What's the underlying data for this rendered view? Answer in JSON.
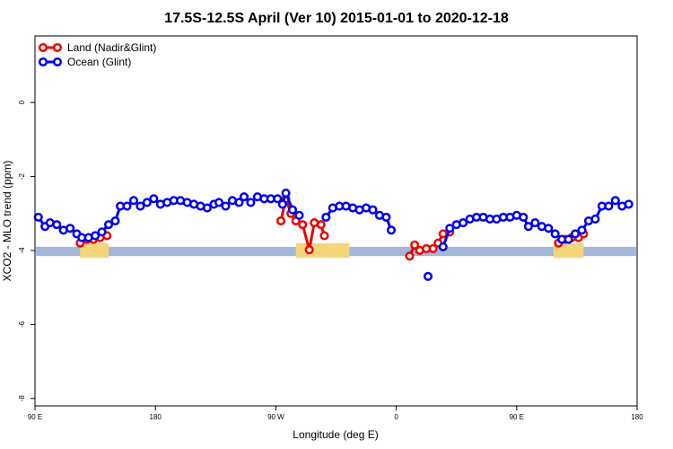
{
  "chart_data": {
    "type": "line",
    "title": "17.5S-12.5S April (Ver 10)   2015-01-01 to 2020-12-18",
    "xlabel": "Longitude (deg E)",
    "ylabel": "XCO2 - MLO trend (ppm)",
    "xlim": [
      90,
      450
    ],
    "ylim": [
      -8.2,
      1.8
    ],
    "x_ticks": [
      {
        "value": 90,
        "label": "90 E"
      },
      {
        "value": 162,
        "label": "180"
      },
      {
        "value": 234,
        "label": "90 W"
      },
      {
        "value": 306,
        "label": "0"
      },
      {
        "value": 378,
        "label": "90 E"
      },
      {
        "value": 450,
        "label": "180"
      }
    ],
    "y_ticks": [
      {
        "value": 0,
        "label": "0"
      },
      {
        "value": -2,
        "label": "-2"
      },
      {
        "value": -4,
        "label": "-4"
      },
      {
        "value": -6,
        "label": "-6"
      },
      {
        "value": -8,
        "label": "-8"
      }
    ],
    "legend_position": "top-left",
    "ocean_band": {
      "y_top": -3.9,
      "y_bottom": -4.15,
      "color": "#a3b7d9"
    },
    "land_color": "#f5d57a",
    "land_segments": [
      [
        117,
        134
      ],
      [
        246,
        278
      ],
      [
        400,
        418
      ]
    ],
    "series": [
      {
        "name": "Land (Nadir&Glint)",
        "color": "#ee0000",
        "segments": [
          [
            [
              117,
              -3.8
            ],
            [
              121,
              -3.7
            ],
            [
              125,
              -3.7
            ],
            [
              129,
              -3.65
            ],
            [
              133,
              -3.6
            ]
          ],
          [
            [
              237,
              -3.2
            ],
            [
              240,
              -2.6
            ],
            [
              243,
              -3.0
            ],
            [
              246,
              -3.2
            ],
            [
              250,
              -3.3
            ],
            [
              254,
              -3.98
            ],
            [
              257,
              -3.25
            ],
            [
              261,
              -3.3
            ],
            [
              263,
              -3.6
            ]
          ],
          [
            [
              314,
              -4.15
            ],
            [
              317,
              -3.85
            ],
            [
              320,
              -4.0
            ],
            [
              324,
              -3.95
            ],
            [
              328,
              -3.95
            ],
            [
              331,
              -3.8
            ],
            [
              334,
              -3.55
            ],
            [
              338,
              -3.5
            ]
          ],
          [
            [
              403,
              -3.8
            ],
            [
              407,
              -3.7
            ],
            [
              411,
              -3.65
            ],
            [
              415,
              -3.65
            ],
            [
              418,
              -3.55
            ]
          ]
        ]
      },
      {
        "name": "Ocean (Glint)",
        "color": "#0000ee",
        "segments": [
          [
            [
              92,
              -3.1
            ],
            [
              96,
              -3.35
            ],
            [
              99,
              -3.25
            ],
            [
              103,
              -3.3
            ],
            [
              107,
              -3.45
            ],
            [
              111,
              -3.4
            ],
            [
              115,
              -3.55
            ],
            [
              118,
              -3.65
            ],
            [
              122,
              -3.65
            ],
            [
              126,
              -3.6
            ],
            [
              130,
              -3.5
            ],
            [
              134,
              -3.3
            ],
            [
              138,
              -3.2
            ],
            [
              141,
              -2.8
            ],
            [
              145,
              -2.8
            ],
            [
              149,
              -2.65
            ],
            [
              153,
              -2.8
            ],
            [
              157,
              -2.7
            ],
            [
              161,
              -2.6
            ],
            [
              165,
              -2.75
            ],
            [
              169,
              -2.7
            ],
            [
              173,
              -2.65
            ],
            [
              177,
              -2.65
            ],
            [
              181,
              -2.7
            ],
            [
              185,
              -2.75
            ],
            [
              189,
              -2.8
            ],
            [
              193,
              -2.85
            ],
            [
              197,
              -2.75
            ],
            [
              200,
              -2.7
            ],
            [
              204,
              -2.8
            ],
            [
              208,
              -2.65
            ],
            [
              212,
              -2.7
            ],
            [
              215,
              -2.55
            ],
            [
              219,
              -2.7
            ],
            [
              223,
              -2.55
            ],
            [
              227,
              -2.6
            ],
            [
              231,
              -2.6
            ],
            [
              235,
              -2.6
            ],
            [
              238,
              -2.75
            ],
            [
              240,
              -2.45
            ],
            [
              244,
              -2.9
            ],
            [
              248,
              -3.05
            ]
          ],
          [
            [
              264,
              -3.1
            ],
            [
              268,
              -2.85
            ],
            [
              272,
              -2.8
            ],
            [
              276,
              -2.8
            ],
            [
              280,
              -2.85
            ],
            [
              284,
              -2.9
            ],
            [
              288,
              -2.85
            ],
            [
              292,
              -2.9
            ],
            [
              296,
              -3.05
            ],
            [
              300,
              -3.1
            ],
            [
              303,
              -3.45
            ]
          ],
          [
            [
              325,
              -4.7
            ]
          ],
          [
            [
              334,
              -3.9
            ],
            [
              338,
              -3.4
            ],
            [
              342,
              -3.3
            ],
            [
              346,
              -3.25
            ],
            [
              350,
              -3.15
            ],
            [
              354,
              -3.1
            ],
            [
              358,
              -3.1
            ],
            [
              362,
              -3.15
            ],
            [
              366,
              -3.15
            ],
            [
              370,
              -3.1
            ],
            [
              374,
              -3.1
            ],
            [
              378,
              -3.05
            ],
            [
              382,
              -3.1
            ],
            [
              385,
              -3.35
            ],
            [
              389,
              -3.25
            ],
            [
              393,
              -3.35
            ],
            [
              397,
              -3.4
            ],
            [
              401,
              -3.55
            ],
            [
              405,
              -3.7
            ],
            [
              409,
              -3.7
            ],
            [
              413,
              -3.55
            ],
            [
              417,
              -3.45
            ],
            [
              421,
              -3.2
            ],
            [
              425,
              -3.15
            ],
            [
              429,
              -2.8
            ],
            [
              433,
              -2.8
            ],
            [
              437,
              -2.65
            ],
            [
              441,
              -2.8
            ],
            [
              445,
              -2.75
            ]
          ]
        ]
      }
    ]
  }
}
